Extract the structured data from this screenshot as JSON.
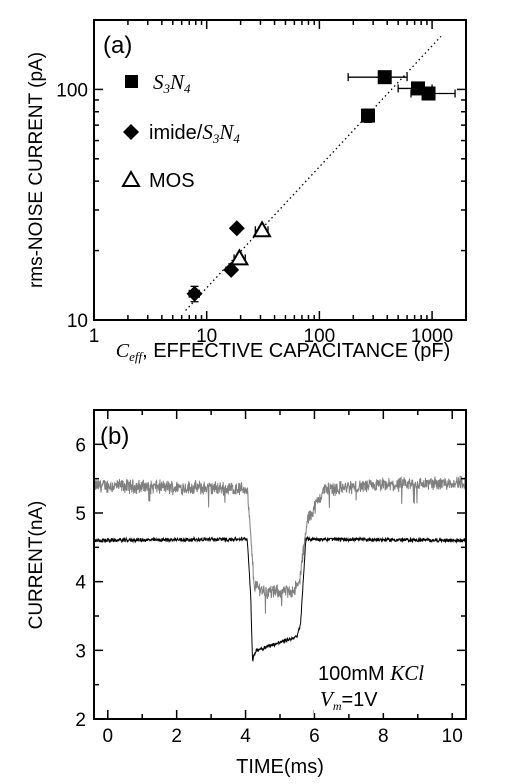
{
  "chart_data": [
    {
      "type": "scatter",
      "panel_label": "(a)",
      "xlabel_symbol": "C",
      "xlabel_subscript": "eff",
      "xlabel_rest": ", EFFECTIVE CAPACITANCE (pF)",
      "ylabel": "rms-NOISE CURRENT (pA)",
      "xscale": "log",
      "yscale": "log",
      "xlim": [
        1,
        2000
      ],
      "ylim": [
        10,
        200
      ],
      "xticks": [
        1,
        10,
        100,
        1000
      ],
      "xtick_labels": [
        "1",
        "10",
        "100",
        "1000"
      ],
      "yticks": [
        10,
        100
      ],
      "ytick_labels": [
        "10",
        "100"
      ],
      "legend_position": "top-left",
      "legend": [
        {
          "marker": "square",
          "label_parts": [
            "S",
            "3",
            "N",
            "4"
          ]
        },
        {
          "marker": "diamond",
          "label_prefix": "imide/",
          "label_parts": [
            "S",
            "3",
            "N",
            "4"
          ]
        },
        {
          "marker": "triangle-open",
          "label": "MOS"
        }
      ],
      "series": [
        {
          "marker": "square",
          "points": [
            {
              "x": 380,
              "y": 113,
              "xerr": [
                180,
                600
              ]
            },
            {
              "x": 270,
              "y": 77,
              "yerr": [
                72,
                82
              ]
            },
            {
              "x": 750,
              "y": 101,
              "xerr": [
                500,
                1000
              ]
            },
            {
              "x": 930,
              "y": 96,
              "xerr": [
                650,
                1600
              ]
            }
          ]
        },
        {
          "marker": "diamond",
          "points": [
            {
              "x": 7.8,
              "y": 13.0,
              "yerr": [
                12.0,
                14.0
              ],
              "xerr": [
                7.0,
                8.6
              ]
            },
            {
              "x": 16.5,
              "y": 16.5
            },
            {
              "x": 18.5,
              "y": 25.0
            }
          ]
        },
        {
          "marker": "triangle-open",
          "points": [
            {
              "x": 19.5,
              "y": 18.5,
              "xerr": [
                17.5,
                22.0
              ]
            },
            {
              "x": 31,
              "y": 24.5,
              "xerr": [
                27,
                35
              ]
            }
          ]
        }
      ],
      "fit_line": {
        "style": "dotted",
        "x": [
          6.5,
          1200
        ],
        "y": [
          11,
          170
        ]
      }
    },
    {
      "type": "line",
      "panel_label": "(b)",
      "xlabel": "TIME(ms)",
      "ylabel": "CURRENT(nA)",
      "xlim": [
        -0.4,
        10.4
      ],
      "ylim": [
        2,
        6.5
      ],
      "xticks": [
        0,
        2,
        4,
        6,
        8,
        10
      ],
      "xtick_labels": [
        "0",
        "2",
        "4",
        "6",
        "8",
        "10"
      ],
      "yticks": [
        2,
        3,
        4,
        5,
        6
      ],
      "ytick_labels": [
        "2",
        "3",
        "4",
        "5",
        "6"
      ],
      "annotation_line1_num": "100mM ",
      "annotation_line1_ion": "KCl",
      "annotation_line2_sym": "V",
      "annotation_line2_sub": "m",
      "annotation_line2_rest": "=1V",
      "series": [
        {
          "color": "#808080",
          "noise": 0.09,
          "x": [
            -0.4,
            4.05,
            4.25,
            4.6,
            5.3,
            5.55,
            5.8,
            6.3,
            8.0,
            10.4
          ],
          "y": [
            5.4,
            5.35,
            3.95,
            3.85,
            3.85,
            3.95,
            4.9,
            5.35,
            5.4,
            5.45
          ]
        },
        {
          "color": "#000000",
          "noise": 0.025,
          "x": [
            -0.4,
            4.05,
            4.15,
            4.2,
            4.3,
            4.6,
            5.5,
            5.6,
            5.75,
            10.4
          ],
          "y": [
            4.6,
            4.62,
            3.8,
            2.85,
            3.0,
            3.05,
            3.2,
            3.4,
            4.62,
            4.6
          ]
        }
      ]
    }
  ]
}
